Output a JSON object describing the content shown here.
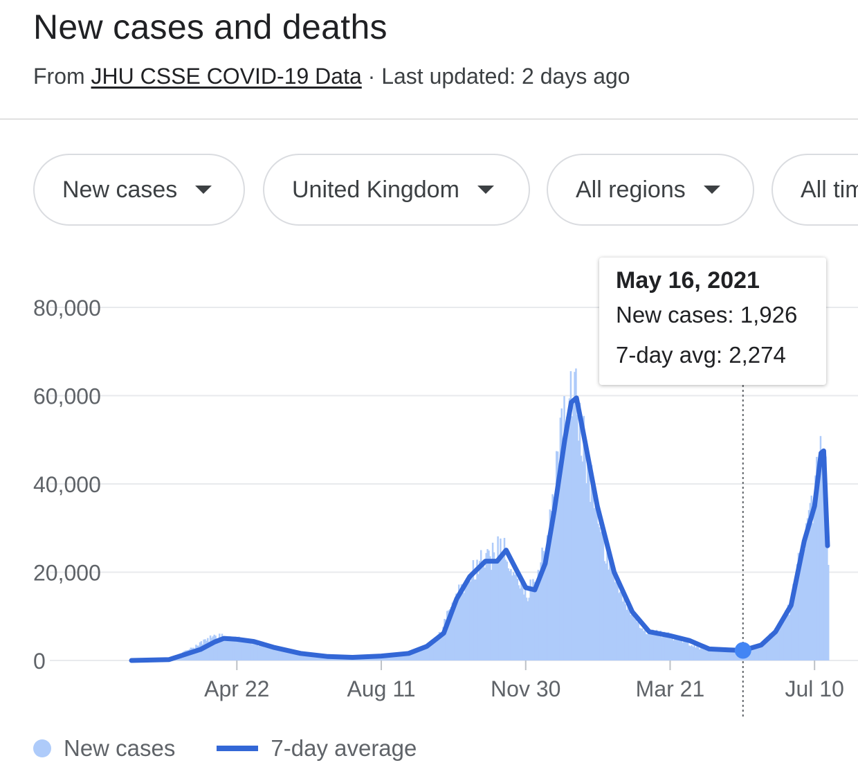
{
  "header": {
    "title": "New cases and deaths",
    "source_prefix": "From ",
    "source_link": "JHU CSSE COVID-19 Data",
    "updated": " · Last updated: 2 days ago"
  },
  "filters": {
    "metric": "New cases",
    "location": "United Kingdom",
    "regions": "All regions",
    "range": "All time"
  },
  "tooltip": {
    "date": "May 16, 2021",
    "new_cases": "New cases: 1,926",
    "avg": "7-day avg: 2,274"
  },
  "legend": {
    "new_cases": "New cases",
    "avg": "7-day average"
  },
  "colors": {
    "bars": "#aecbfa",
    "line": "#3367d6",
    "grid": "#e8eaed",
    "highlight_point": "#4285f4"
  },
  "chart_data": {
    "type": "area",
    "title": "",
    "xlabel": "",
    "ylabel": "",
    "ylim": [
      0,
      80000
    ],
    "yticks": [
      0,
      20000,
      40000,
      60000,
      80000
    ],
    "ytick_labels": [
      "0",
      "20,000",
      "40,000",
      "60,000",
      "80,000"
    ],
    "xtick_labels": [
      "Apr 22",
      "Aug 11",
      "Nov 30",
      "Mar 21",
      "Jul 10"
    ],
    "xticks": [
      "2020-04-22",
      "2020-08-11",
      "2020-11-30",
      "2021-03-21",
      "2021-07-10"
    ],
    "x_range": [
      "2020-02-01",
      "2021-07-20"
    ],
    "grid": true,
    "legend_position": "bottom-left",
    "highlight": {
      "x": "2021-05-16",
      "new_cases": 1926,
      "avg": 2274
    },
    "series": [
      {
        "name": "New cases",
        "type": "bar",
        "points": [
          [
            "2020-02-01",
            0
          ],
          [
            "2020-03-01",
            300
          ],
          [
            "2020-03-20",
            3000
          ],
          [
            "2020-04-01",
            5000
          ],
          [
            "2020-04-10",
            5500
          ],
          [
            "2020-04-22",
            5000
          ],
          [
            "2020-05-05",
            4000
          ],
          [
            "2020-05-20",
            2800
          ],
          [
            "2020-06-10",
            1500
          ],
          [
            "2020-07-01",
            800
          ],
          [
            "2020-07-20",
            600
          ],
          [
            "2020-08-11",
            1000
          ],
          [
            "2020-09-01",
            1500
          ],
          [
            "2020-09-15",
            3500
          ],
          [
            "2020-09-25",
            6000
          ],
          [
            "2020-10-05",
            14000
          ],
          [
            "2020-10-15",
            18000
          ],
          [
            "2020-10-25",
            22000
          ],
          [
            "2020-11-05",
            24000
          ],
          [
            "2020-11-12",
            26000
          ],
          [
            "2020-11-20",
            20000
          ],
          [
            "2020-11-30",
            15000
          ],
          [
            "2020-12-10",
            20000
          ],
          [
            "2020-12-20",
            35000
          ],
          [
            "2020-12-29",
            55000
          ],
          [
            "2021-01-02",
            58000
          ],
          [
            "2021-01-06",
            65000
          ],
          [
            "2021-01-10",
            55000
          ],
          [
            "2021-01-20",
            38000
          ],
          [
            "2021-02-01",
            22000
          ],
          [
            "2021-02-15",
            12000
          ],
          [
            "2021-03-01",
            7000
          ],
          [
            "2021-03-21",
            5500
          ],
          [
            "2021-04-10",
            3000
          ],
          [
            "2021-05-01",
            2200
          ],
          [
            "2021-05-16",
            1926
          ],
          [
            "2021-05-30",
            3500
          ],
          [
            "2021-06-10",
            7000
          ],
          [
            "2021-06-20",
            12000
          ],
          [
            "2021-07-01",
            28000
          ],
          [
            "2021-07-10",
            38000
          ],
          [
            "2021-07-15",
            52000
          ],
          [
            "2021-07-18",
            42000
          ],
          [
            "2021-07-20",
            24000
          ]
        ]
      },
      {
        "name": "7-day average",
        "type": "line",
        "points": [
          [
            "2020-02-01",
            0
          ],
          [
            "2020-03-01",
            200
          ],
          [
            "2020-03-25",
            2500
          ],
          [
            "2020-04-05",
            4200
          ],
          [
            "2020-04-12",
            5000
          ],
          [
            "2020-04-22",
            4800
          ],
          [
            "2020-05-05",
            4300
          ],
          [
            "2020-05-20",
            3000
          ],
          [
            "2020-06-10",
            1600
          ],
          [
            "2020-07-01",
            900
          ],
          [
            "2020-07-20",
            700
          ],
          [
            "2020-08-11",
            1000
          ],
          [
            "2020-09-01",
            1600
          ],
          [
            "2020-09-15",
            3200
          ],
          [
            "2020-09-28",
            6200
          ],
          [
            "2020-10-08",
            14000
          ],
          [
            "2020-10-18",
            19000
          ],
          [
            "2020-10-30",
            22500
          ],
          [
            "2020-11-08",
            22500
          ],
          [
            "2020-11-15",
            25000
          ],
          [
            "2020-11-22",
            21000
          ],
          [
            "2020-11-30",
            16500
          ],
          [
            "2020-12-07",
            16000
          ],
          [
            "2020-12-15",
            22000
          ],
          [
            "2020-12-22",
            34000
          ],
          [
            "2020-12-30",
            50000
          ],
          [
            "2021-01-04",
            58500
          ],
          [
            "2021-01-08",
            59500
          ],
          [
            "2021-01-13",
            52000
          ],
          [
            "2021-01-24",
            35000
          ],
          [
            "2021-02-06",
            20000
          ],
          [
            "2021-02-20",
            11000
          ],
          [
            "2021-03-05",
            6500
          ],
          [
            "2021-03-21",
            5600
          ],
          [
            "2021-04-05",
            4500
          ],
          [
            "2021-04-20",
            2600
          ],
          [
            "2021-05-05",
            2400
          ],
          [
            "2021-05-16",
            2274
          ],
          [
            "2021-05-30",
            3500
          ],
          [
            "2021-06-10",
            6500
          ],
          [
            "2021-06-22",
            12500
          ],
          [
            "2021-07-02",
            27000
          ],
          [
            "2021-07-10",
            35000
          ],
          [
            "2021-07-15",
            47000
          ],
          [
            "2021-07-17",
            47500
          ],
          [
            "2021-07-20",
            26000
          ]
        ]
      }
    ]
  }
}
